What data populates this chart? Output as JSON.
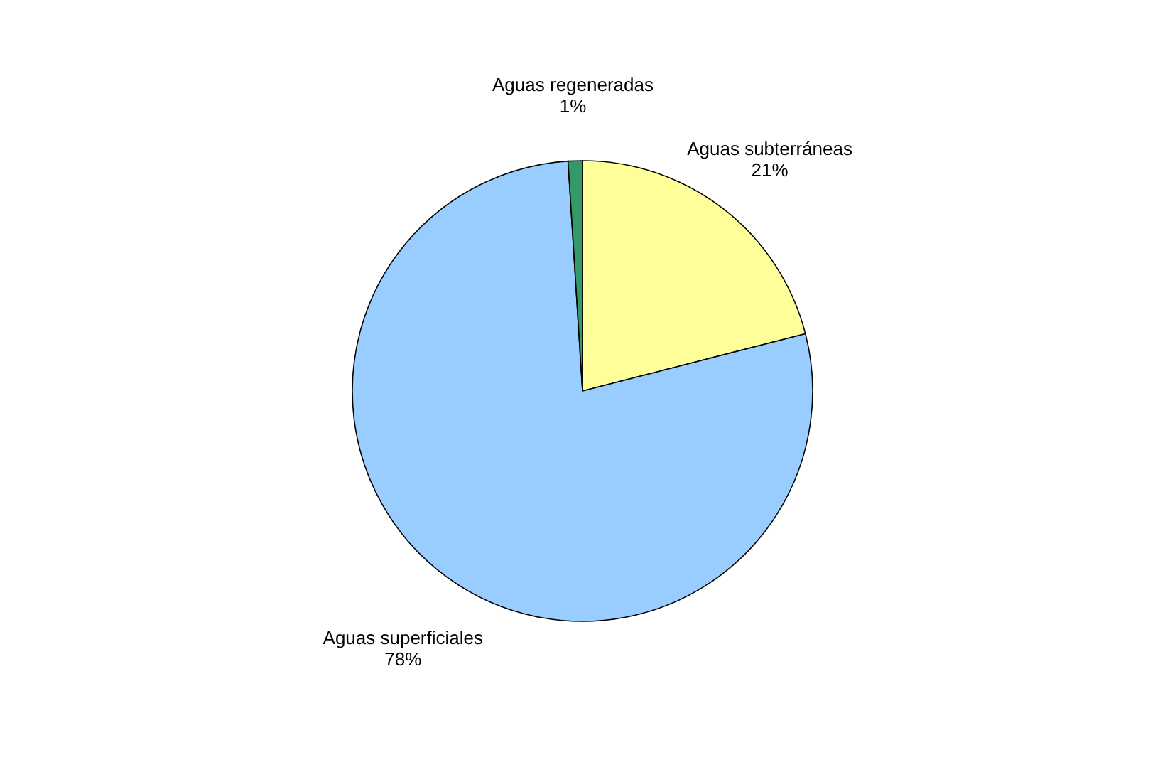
{
  "chart_data": {
    "type": "pie",
    "categories": [
      "Aguas subterráneas",
      "Aguas superficiales",
      "Aguas regeneradas"
    ],
    "values": [
      21,
      78,
      1
    ],
    "value_labels": [
      "21%",
      "78%",
      "1%"
    ],
    "colors": [
      "#ffff99",
      "#99ccff",
      "#339966"
    ],
    "legend": false
  }
}
